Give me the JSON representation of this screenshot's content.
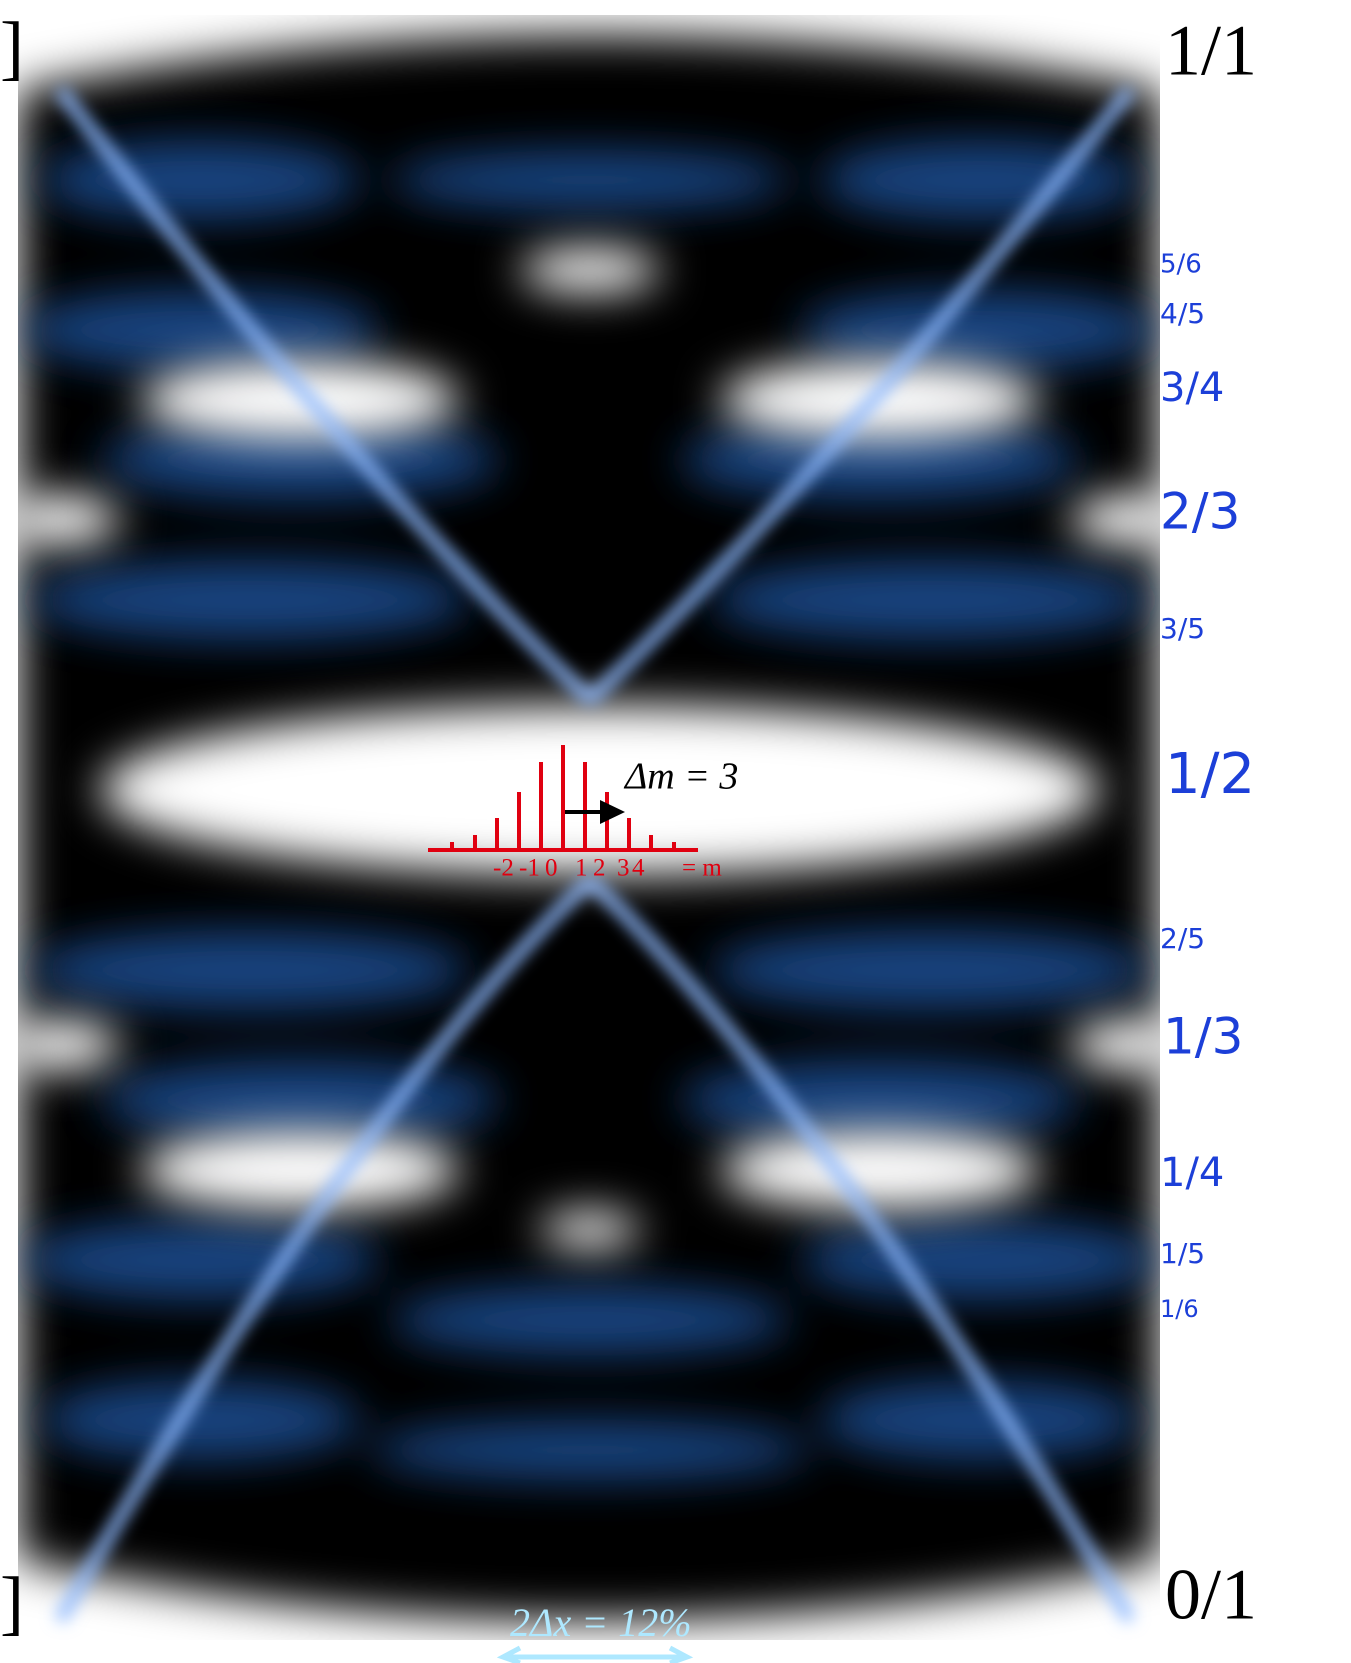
{
  "corner_labels": {
    "top_left": "]",
    "bottom_left": "]",
    "top_right": "1/1",
    "bottom_right": "0/1"
  },
  "fraction_labels": [
    "5/6",
    "4/5",
    "3/4",
    "2/3",
    "3/5",
    "1/2",
    "2/5",
    "1/3",
    "1/4",
    "1/5",
    "1/6"
  ],
  "inset": {
    "delta_m": "Δm = 3",
    "m_values": [
      "-2",
      "-1",
      "0",
      "1",
      "2",
      "3",
      "4"
    ],
    "m_label": "= m"
  },
  "bottom_annotation": "2Δx = 12%"
}
